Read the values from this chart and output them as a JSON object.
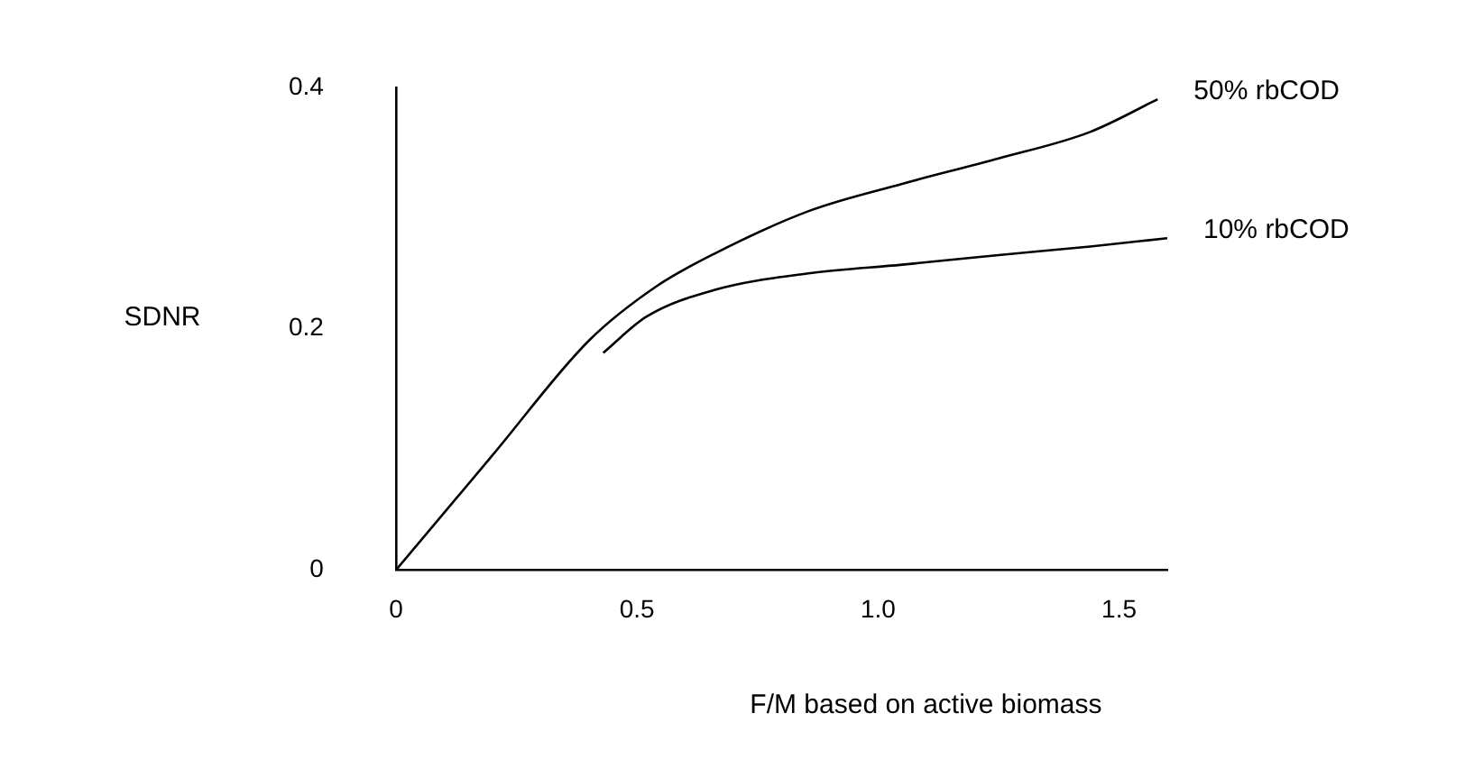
{
  "chart_data": {
    "type": "line",
    "xlabel": "F/M based on active biomass",
    "ylabel": "SDNR",
    "xlim": [
      0,
      1.6
    ],
    "xticks": [
      0,
      0.5,
      {
        "value": 1,
        "label": "1.0"
      },
      1.5
    ],
    "ylim": [
      0,
      0.4
    ],
    "yticks": [
      0,
      0.2,
      0.4
    ],
    "grid": false,
    "legend": false,
    "marker": "none",
    "line_style": "solid",
    "series": [
      {
        "name": "50% rbCOD",
        "color": "#000000",
        "x": [
          0,
          0.2,
          0.4,
          0.54,
          0.66,
          0.86,
          1.05,
          1.25,
          1.44,
          1.58
        ],
        "values": [
          0,
          0.095,
          0.19,
          0.235,
          0.262,
          0.298,
          0.32,
          0.341,
          0.363,
          0.39
        ]
      },
      {
        "name": "10% rbCOD",
        "color": "#000000",
        "x": [
          0.43,
          0.52,
          0.66,
          0.86,
          1.05,
          1.25,
          1.44,
          1.6
        ],
        "values": [
          0.18,
          0.21,
          0.232,
          0.246,
          0.253,
          0.261,
          0.268,
          0.275
        ]
      }
    ]
  }
}
